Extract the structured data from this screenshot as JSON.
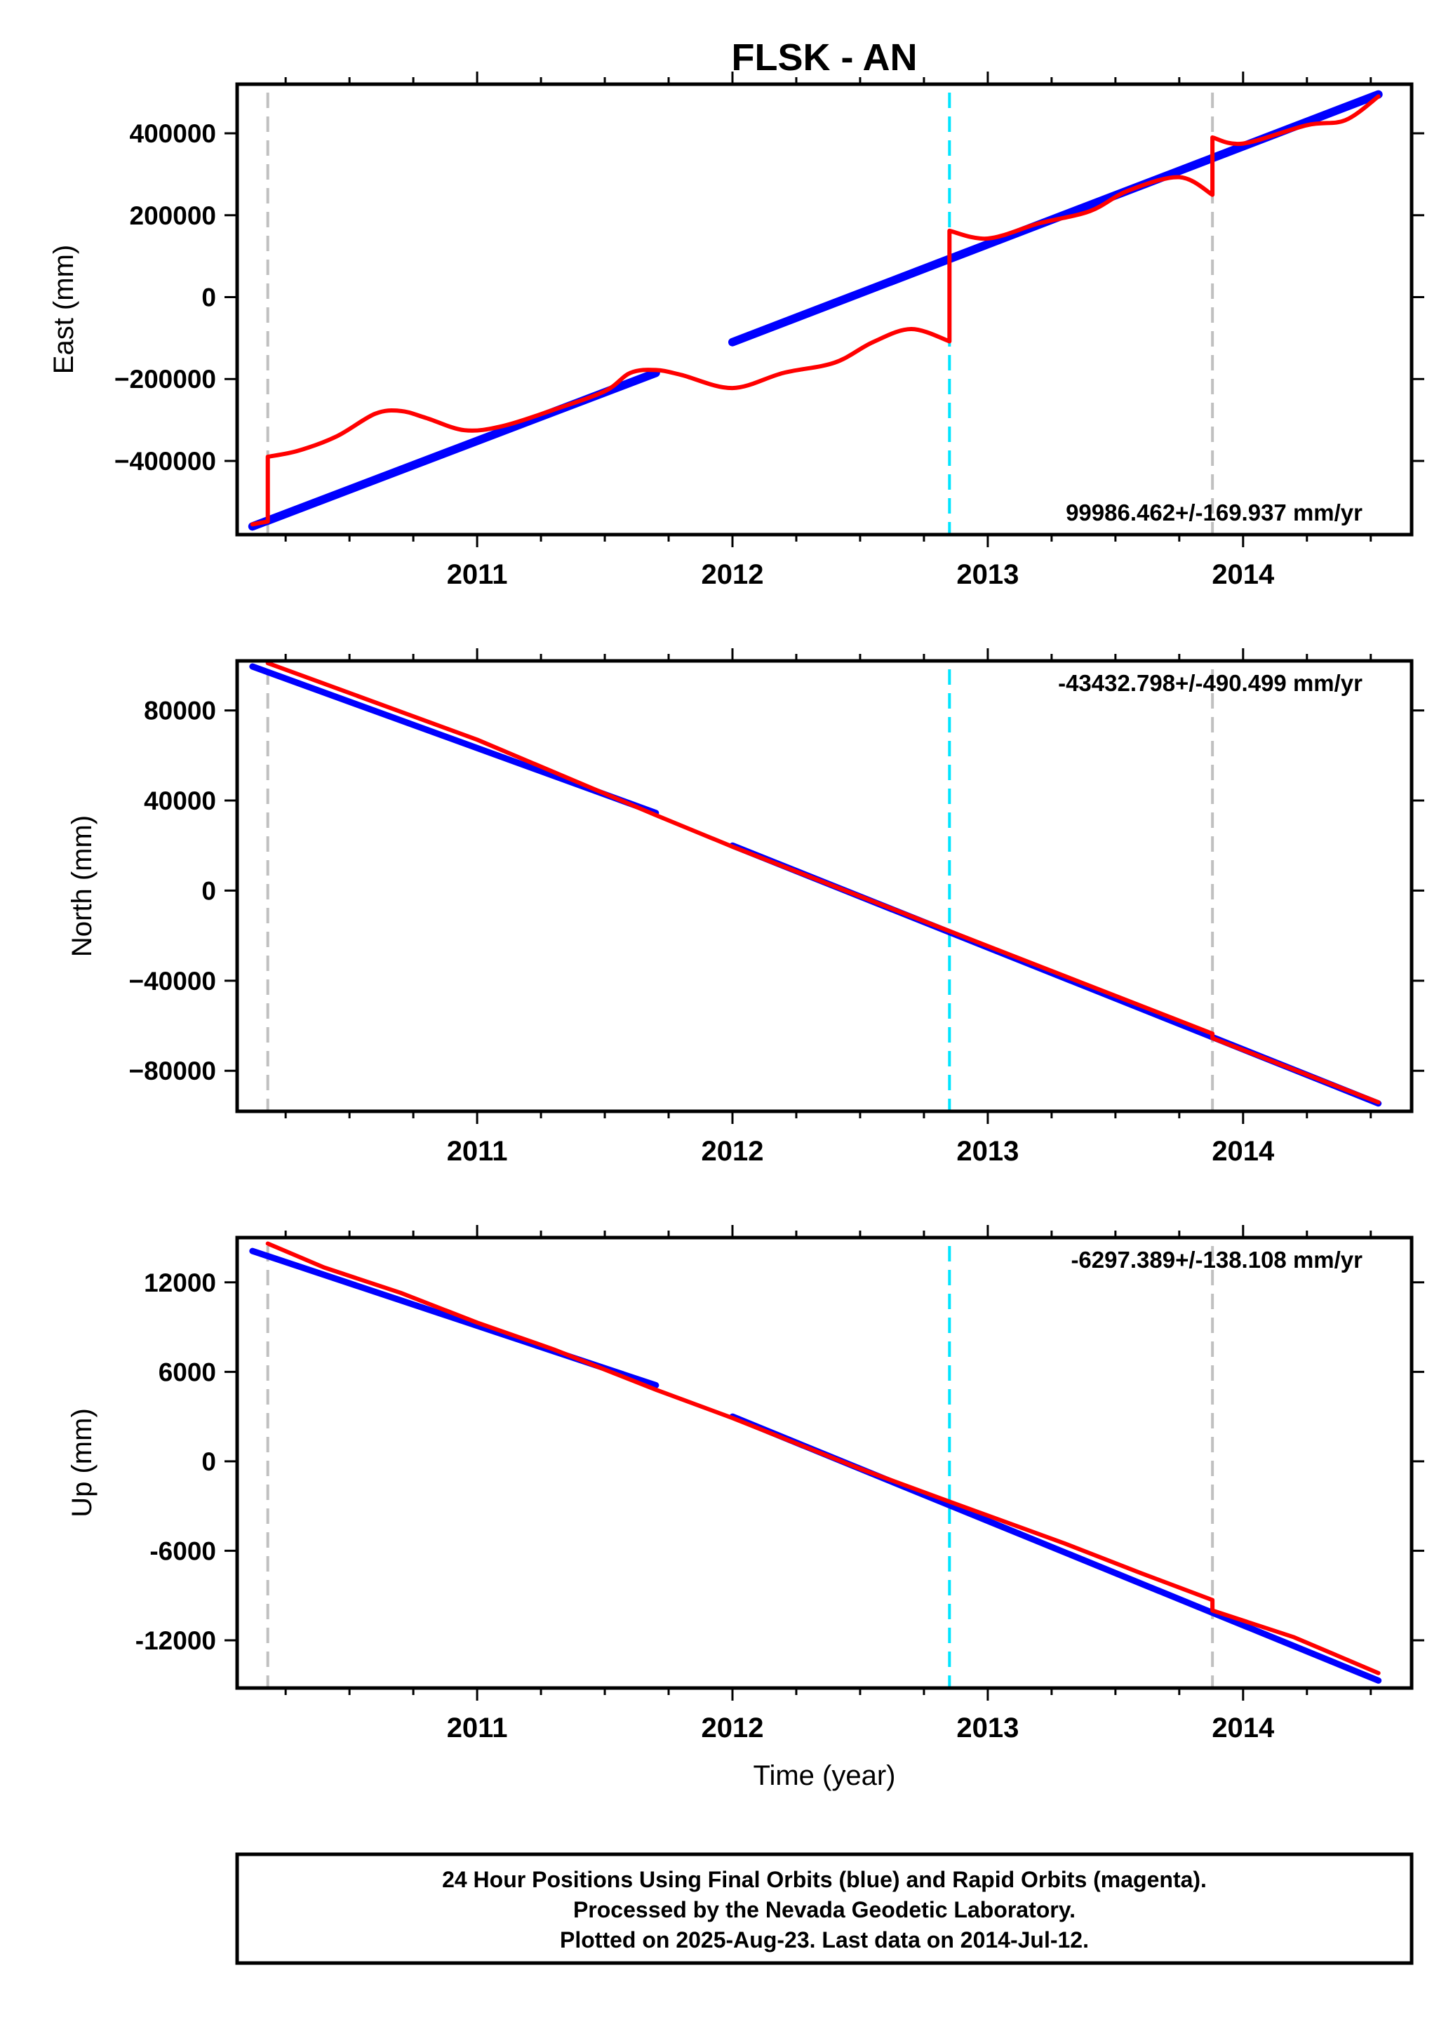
{
  "chart_data": {
    "type": "line",
    "title": "FLSK - AN",
    "xlabel": "Time (year)",
    "xlim": [
      2010.06,
      2014.66
    ],
    "x_ticks": [
      2011,
      2012,
      2013,
      2014
    ],
    "x_tick_labels": [
      "2011",
      "2012",
      "2013",
      "2014"
    ],
    "series_colors": {
      "final": "#0000ff",
      "rapid": "#ff0000"
    },
    "vertical_markers": [
      {
        "x": 2010.18,
        "color": "#c0c0c0",
        "style": "dashed"
      },
      {
        "x": 2012.85,
        "color": "#00e5ff",
        "style": "dashed"
      },
      {
        "x": 2013.88,
        "color": "#c0c0c0",
        "style": "dashed"
      }
    ],
    "panels": [
      {
        "ylabel": "East (mm)",
        "ylim": [
          -580000,
          520000
        ],
        "y_ticks": [
          400000,
          200000,
          0,
          -200000,
          -400000
        ],
        "y_tick_labels": [
          "400000",
          "200000",
          "0",
          "−200000",
          "−400000"
        ],
        "rate": "99986.462+/-169.937 mm/yr",
        "rate_position": "bottom-right",
        "final": [
          {
            "x": [
              2010.12,
              2011.7
            ],
            "y": [
              -560000,
              -185000
            ]
          },
          {
            "x": [
              2012.0,
              2014.53
            ],
            "y": [
              -110000,
              495000
            ]
          }
        ],
        "rapid": {
          "x": [
            2010.12,
            2010.18,
            2010.18,
            2010.3,
            2010.45,
            2010.6,
            2010.7,
            2010.8,
            2010.95,
            2011.1,
            2011.3,
            2011.5,
            2011.6,
            2011.7,
            2011.8,
            2012.0,
            2012.2,
            2012.4,
            2012.55,
            2012.7,
            2012.85,
            2012.85,
            2013.0,
            2013.2,
            2013.4,
            2013.55,
            2013.75,
            2013.88,
            2013.88,
            2014.0,
            2014.25,
            2014.4,
            2014.53
          ],
          "y": [
            -555000,
            -548000,
            -390000,
            -375000,
            -340000,
            -285000,
            -278000,
            -295000,
            -325000,
            -315000,
            -275000,
            -230000,
            -185000,
            -178000,
            -190000,
            -222000,
            -185000,
            -160000,
            -110000,
            -78000,
            -108000,
            162000,
            143000,
            180000,
            210000,
            260000,
            293000,
            250000,
            390000,
            375000,
            420000,
            432000,
            490000
          ]
        }
      },
      {
        "ylabel": "North (mm)",
        "ylim": [
          -98000,
          102000
        ],
        "y_ticks": [
          80000,
          40000,
          0,
          -40000,
          -80000
        ],
        "y_tick_labels": [
          "80000",
          "40000",
          "0",
          "−40000",
          "−80000"
        ],
        "rate": "-43432.798+/-490.499 mm/yr",
        "rate_position": "top-right",
        "final": [
          {
            "x": [
              2010.12,
              2011.7
            ],
            "y": [
              99500,
              34500
            ]
          },
          {
            "x": [
              2012.0,
              2014.53
            ],
            "y": [
              20000,
              -94500
            ]
          }
        ],
        "rapid": {
          "x": [
            2010.18,
            2011.0,
            2011.7,
            2012.0,
            2012.85,
            2013.88,
            2013.88,
            2014.53
          ],
          "y": [
            101000,
            67000,
            33500,
            19500,
            -18000,
            -63500,
            -65500,
            -94000
          ]
        }
      },
      {
        "ylabel": "Up (mm)",
        "ylim": [
          -15200,
          15000
        ],
        "y_ticks": [
          12000,
          6000,
          0,
          -6000,
          -12000
        ],
        "y_tick_labels": [
          "12000",
          "6000",
          "0",
          "-6000",
          "-12000"
        ],
        "rate": "-6297.389+/-138.108 mm/yr",
        "rate_position": "top-right",
        "final": [
          {
            "x": [
              2010.12,
              2011.7
            ],
            "y": [
              14100,
              5100
            ]
          },
          {
            "x": [
              2012.0,
              2014.53
            ],
            "y": [
              3000,
              -14700
            ]
          }
        ],
        "rapid": {
          "x": [
            2010.18,
            2010.4,
            2010.7,
            2011.0,
            2011.3,
            2011.7,
            2012.0,
            2012.5,
            2012.85,
            2013.3,
            2013.6,
            2013.88,
            2013.88,
            2014.2,
            2014.53
          ],
          "y": [
            14600,
            13000,
            11300,
            9300,
            7500,
            4800,
            2900,
            -500,
            -2700,
            -5500,
            -7500,
            -9300,
            -10000,
            -11800,
            -14200
          ]
        }
      }
    ],
    "footer_lines": [
      "24 Hour Positions Using Final Orbits (blue) and Rapid Orbits (magenta).",
      "Processed by the Nevada Geodetic Laboratory.",
      "Plotted on 2025-Aug-23. Last data on 2014-Jul-12."
    ]
  }
}
